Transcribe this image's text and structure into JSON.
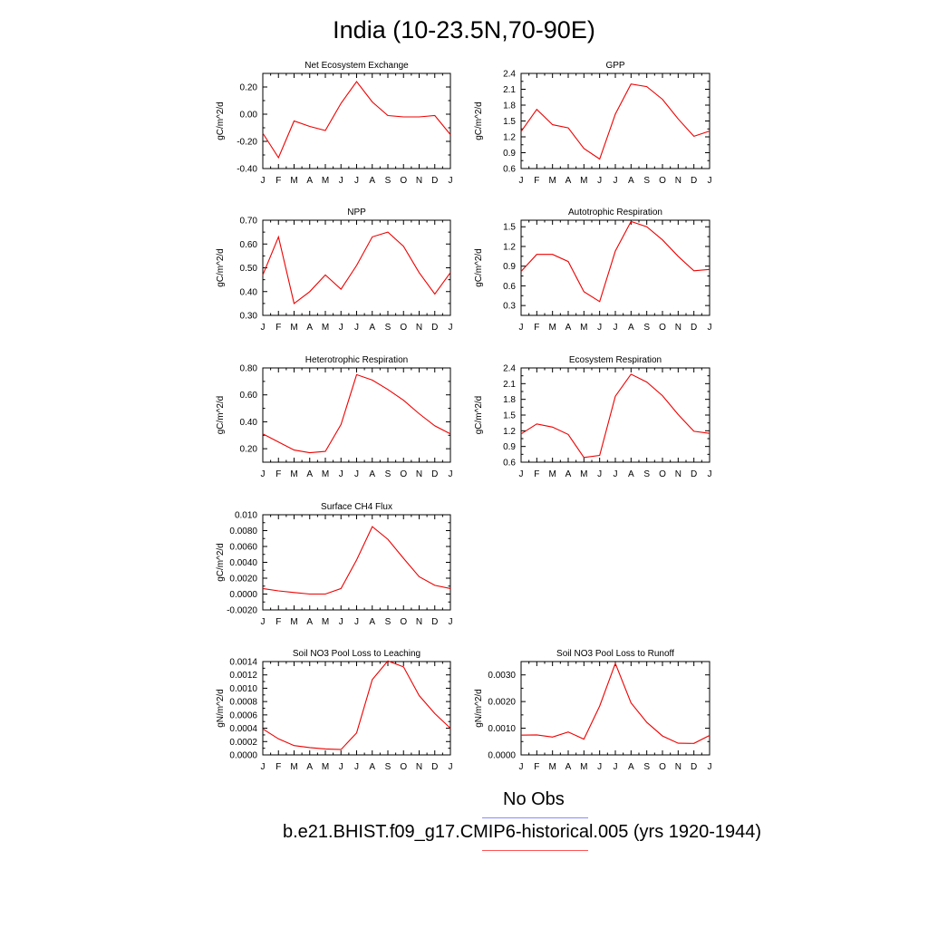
{
  "figure": {
    "title": "India (10-23.5N,70-90E)",
    "legend": [
      {
        "label": "No Obs",
        "color": "#8888ff"
      },
      {
        "label": "b.e21.BHIST.f09_g17.CMIP6-historical.005 (yrs 1920-1944)",
        "color": "#ff5555"
      }
    ]
  },
  "chart_data": [
    {
      "id": "nee",
      "type": "line",
      "title": "Net Ecosystem Exchange",
      "ylabel": "gC/m^2/d",
      "x": [
        "J",
        "F",
        "M",
        "A",
        "M",
        "J",
        "J",
        "A",
        "S",
        "O",
        "N",
        "D",
        "J"
      ],
      "ylim": [
        -0.4,
        0.3
      ],
      "yticks": [
        -0.4,
        -0.2,
        0.0,
        0.2
      ],
      "ytick_labels": [
        "-0.40",
        "-0.20",
        "0.00",
        "0.20"
      ],
      "series": [
        {
          "values": [
            -0.14,
            -0.32,
            -0.05,
            -0.09,
            -0.12,
            0.08,
            0.24,
            0.09,
            -0.01,
            -0.02,
            -0.02,
            -0.01,
            -0.15
          ],
          "color": "#ee0000"
        }
      ]
    },
    {
      "id": "gpp",
      "type": "line",
      "title": "GPP",
      "ylabel": "gC/m^2/d",
      "x": [
        "J",
        "F",
        "M",
        "A",
        "M",
        "J",
        "J",
        "A",
        "S",
        "O",
        "N",
        "D",
        "J"
      ],
      "ylim": [
        0.6,
        2.4
      ],
      "yticks": [
        0.6,
        0.9,
        1.2,
        1.5,
        1.8,
        2.1,
        2.4
      ],
      "ytick_labels": [
        "0.6",
        "0.9",
        "1.2",
        "1.5",
        "1.8",
        "2.1",
        "2.4"
      ],
      "series": [
        {
          "values": [
            1.3,
            1.72,
            1.43,
            1.37,
            0.98,
            0.78,
            1.63,
            2.2,
            2.15,
            1.91,
            1.54,
            1.21,
            1.31
          ],
          "color": "#ee0000"
        }
      ]
    },
    {
      "id": "npp",
      "type": "line",
      "title": "NPP",
      "ylabel": "gC/m^2/d",
      "x": [
        "J",
        "F",
        "M",
        "A",
        "M",
        "J",
        "J",
        "A",
        "S",
        "O",
        "N",
        "D",
        "J"
      ],
      "ylim": [
        0.3,
        0.7
      ],
      "yticks": [
        0.3,
        0.4,
        0.5,
        0.6,
        0.7
      ],
      "ytick_labels": [
        "0.30",
        "0.40",
        "0.50",
        "0.60",
        "0.70"
      ],
      "series": [
        {
          "values": [
            0.47,
            0.63,
            0.35,
            0.4,
            0.47,
            0.41,
            0.51,
            0.63,
            0.65,
            0.59,
            0.48,
            0.39,
            0.48
          ],
          "color": "#ee0000"
        }
      ]
    },
    {
      "id": "ar",
      "type": "line",
      "title": "Autotrophic Respiration",
      "ylabel": "gC/m^2/d",
      "x": [
        "J",
        "F",
        "M",
        "A",
        "M",
        "J",
        "J",
        "A",
        "S",
        "O",
        "N",
        "D",
        "J"
      ],
      "ylim": [
        0.15,
        1.6
      ],
      "yticks": [
        0.3,
        0.6,
        0.9,
        1.2,
        1.5
      ],
      "ytick_labels": [
        "0.3",
        "0.6",
        "0.9",
        "1.2",
        "1.5"
      ],
      "series": [
        {
          "values": [
            0.82,
            1.08,
            1.08,
            0.97,
            0.51,
            0.36,
            1.13,
            1.58,
            1.5,
            1.3,
            1.05,
            0.83,
            0.85
          ],
          "color": "#ee0000"
        }
      ]
    },
    {
      "id": "hr",
      "type": "line",
      "title": "Heterotrophic Respiration",
      "ylabel": "gC/m^2/d",
      "x": [
        "J",
        "F",
        "M",
        "A",
        "M",
        "J",
        "J",
        "A",
        "S",
        "O",
        "N",
        "D",
        "J"
      ],
      "ylim": [
        0.1,
        0.8
      ],
      "yticks": [
        0.2,
        0.4,
        0.6,
        0.8
      ],
      "ytick_labels": [
        "0.20",
        "0.40",
        "0.60",
        "0.80"
      ],
      "series": [
        {
          "values": [
            0.31,
            0.25,
            0.19,
            0.17,
            0.18,
            0.38,
            0.75,
            0.71,
            0.64,
            0.56,
            0.46,
            0.37,
            0.31
          ],
          "color": "#ee0000"
        }
      ]
    },
    {
      "id": "er",
      "type": "line",
      "title": "Ecosystem Respiration",
      "ylabel": "gC/m^2/d",
      "x": [
        "J",
        "F",
        "M",
        "A",
        "M",
        "J",
        "J",
        "A",
        "S",
        "O",
        "N",
        "D",
        "J"
      ],
      "ylim": [
        0.6,
        2.4
      ],
      "yticks": [
        0.6,
        0.9,
        1.2,
        1.5,
        1.8,
        2.1,
        2.4
      ],
      "ytick_labels": [
        "0.6",
        "0.9",
        "1.2",
        "1.5",
        "1.8",
        "2.1",
        "2.4"
      ],
      "series": [
        {
          "values": [
            1.14,
            1.33,
            1.27,
            1.13,
            0.69,
            0.73,
            1.86,
            2.28,
            2.13,
            1.87,
            1.51,
            1.19,
            1.15
          ],
          "color": "#ee0000"
        }
      ]
    },
    {
      "id": "ch4",
      "type": "line",
      "title": "Surface CH4 Flux",
      "ylabel": "gC/m^2/d",
      "x": [
        "J",
        "F",
        "M",
        "A",
        "M",
        "J",
        "J",
        "A",
        "S",
        "O",
        "N",
        "D",
        "J"
      ],
      "ylim": [
        -0.002,
        0.01
      ],
      "yticks": [
        -0.002,
        0,
        0.002,
        0.004,
        0.006,
        0.008,
        0.01
      ],
      "ytick_labels": [
        "-0.0020",
        "0.0000",
        "0.0020",
        "0.0040",
        "0.0060",
        "0.0080",
        "0.010"
      ],
      "series": [
        {
          "values": [
            0.0007,
            0.0004,
            0.0002,
            0.0,
            0.0,
            0.0007,
            0.0043,
            0.0085,
            0.0069,
            0.0045,
            0.0022,
            0.0011,
            0.0007
          ],
          "color": "#ee0000"
        }
      ]
    },
    {
      "id": "no3leach",
      "type": "line",
      "title": "Soil NO3 Pool Loss to Leaching",
      "ylabel": "gN/m^2/d",
      "x": [
        "J",
        "F",
        "M",
        "A",
        "M",
        "J",
        "J",
        "A",
        "S",
        "O",
        "N",
        "D",
        "J"
      ],
      "ylim": [
        0,
        0.0014
      ],
      "yticks": [
        0,
        0.0002,
        0.0004,
        0.0006,
        0.0008,
        0.001,
        0.0012,
        0.0014
      ],
      "ytick_labels": [
        "0.0000",
        "0.0002",
        "0.0004",
        "0.0006",
        "0.0008",
        "0.0010",
        "0.0012",
        "0.0014"
      ],
      "series": [
        {
          "values": [
            0.00039,
            0.00024,
            0.00014,
            0.00011,
            9e-05,
            8e-05,
            0.00033,
            0.00113,
            0.00141,
            0.00132,
            0.00089,
            0.00062,
            0.0004
          ],
          "color": "#ee0000"
        }
      ]
    },
    {
      "id": "no3run",
      "type": "line",
      "title": "Soil NO3 Pool Loss to Runoff",
      "ylabel": "gN/m^2/d",
      "x": [
        "J",
        "F",
        "M",
        "A",
        "M",
        "J",
        "J",
        "A",
        "S",
        "O",
        "N",
        "D",
        "J"
      ],
      "ylim": [
        0,
        0.0035
      ],
      "yticks": [
        0,
        0.001,
        0.002,
        0.003
      ],
      "ytick_labels": [
        "0.0000",
        "0.0010",
        "0.0020",
        "0.0030"
      ],
      "series": [
        {
          "values": [
            0.00074,
            0.00075,
            0.00067,
            0.00086,
            0.00059,
            0.00183,
            0.00343,
            0.00195,
            0.00122,
            0.00071,
            0.00044,
            0.00043,
            0.00073
          ],
          "color": "#ee0000"
        }
      ]
    }
  ]
}
